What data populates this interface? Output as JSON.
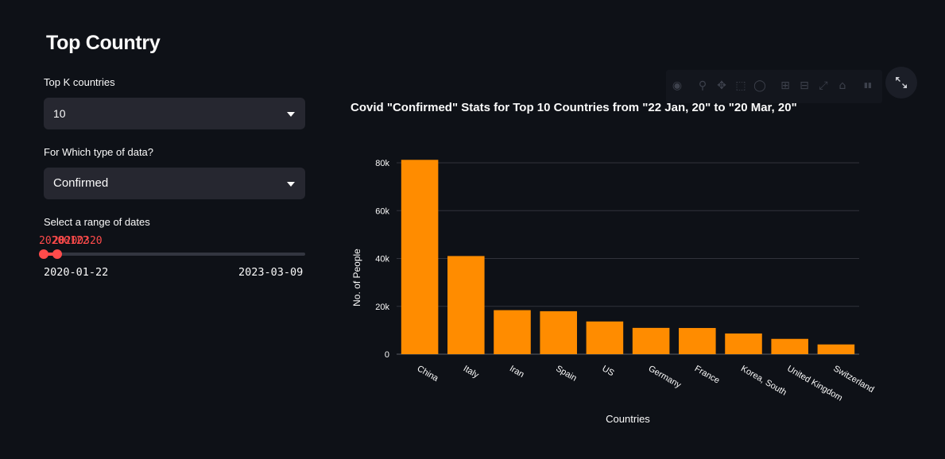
{
  "page": {
    "title": "Top Country"
  },
  "controls": {
    "top_k_label": "Top K countries",
    "top_k_value": "10",
    "data_type_label": "For Which type of data?",
    "data_type_value": "Confirmed",
    "date_range_label": "Select a range of dates",
    "date_start_value": "20200122",
    "date_end_value": "20200320",
    "date_min": "2020-01-22",
    "date_max": "2023-03-09",
    "date_range_fraction": [
      0.0,
      0.05
    ]
  },
  "toolbar": {
    "icons": [
      "camera-icon",
      "zoom-icon",
      "pan-icon",
      "box-select-icon",
      "lasso-icon",
      "zoom-in-icon",
      "zoom-out-icon",
      "autoscale-icon",
      "reset-axes-icon",
      "plotly-logo-icon"
    ]
  },
  "chart_data": {
    "type": "bar",
    "title": "Covid \"Confirmed\" Stats for Top 10 Countries from \"22 Jan, 20\" to \"20 Mar, 20\"",
    "xlabel": "Countries",
    "ylabel": "No. of People",
    "categories": [
      "China",
      "Italy",
      "Iran",
      "Spain",
      "US",
      "Germany",
      "France",
      "Korea, South",
      "United Kingdom",
      "Switzerland"
    ],
    "values": [
      81250,
      41035,
      18407,
      17963,
      13677,
      10999,
      10947,
      8652,
      6396,
      4075
    ],
    "ylim": [
      0,
      84000
    ],
    "yticks": [
      0,
      20000,
      40000,
      60000,
      80000
    ],
    "ytick_labels": [
      "0",
      "20k",
      "40k",
      "60k",
      "80k"
    ],
    "bar_color": "#ff8c00",
    "grid": true
  },
  "colors": {
    "background": "#0e1117",
    "widget": "#262730",
    "accent": "#ff4b4b",
    "bar": "#ff8c00",
    "grid": "#31333b"
  }
}
